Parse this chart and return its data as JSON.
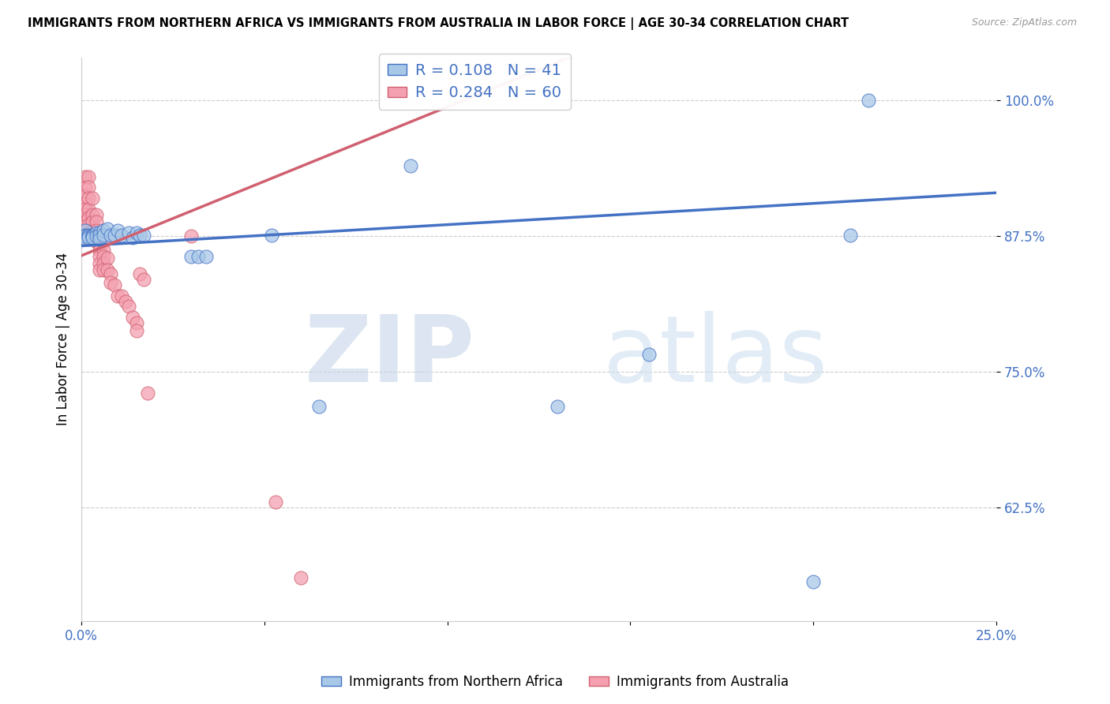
{
  "title": "IMMIGRANTS FROM NORTHERN AFRICA VS IMMIGRANTS FROM AUSTRALIA IN LABOR FORCE | AGE 30-34 CORRELATION CHART",
  "source": "Source: ZipAtlas.com",
  "ylabel_label": "In Labor Force | Age 30-34",
  "legend_label1": "Immigrants from Northern Africa",
  "legend_label2": "Immigrants from Australia",
  "R1": 0.108,
  "N1": 41,
  "R2": 0.284,
  "N2": 60,
  "color_blue": "#a8c8e8",
  "color_pink": "#f4a0b0",
  "color_blue_line": "#4472c4",
  "color_pink_line": "#d06070",
  "color_axis": "#4472c4",
  "xlim": [
    0.0,
    0.25
  ],
  "ylim": [
    0.52,
    1.04
  ],
  "blue_x": [
    0.0,
    0.0,
    0.001,
    0.001,
    0.001,
    0.001,
    0.002,
    0.002,
    0.002,
    0.003,
    0.003,
    0.003,
    0.003,
    0.004,
    0.004,
    0.005,
    0.005,
    0.005,
    0.006,
    0.006,
    0.007,
    0.008,
    0.009,
    0.01,
    0.011,
    0.013,
    0.014,
    0.015,
    0.016,
    0.017,
    0.03,
    0.032,
    0.034,
    0.052,
    0.065,
    0.09,
    0.13,
    0.155,
    0.2,
    0.21,
    0.215
  ],
  "blue_y": [
    0.876,
    0.875,
    0.88,
    0.876,
    0.875,
    0.873,
    0.876,
    0.875,
    0.874,
    0.876,
    0.875,
    0.875,
    0.874,
    0.878,
    0.875,
    0.878,
    0.876,
    0.872,
    0.88,
    0.876,
    0.882,
    0.876,
    0.876,
    0.88,
    0.876,
    0.878,
    0.874,
    0.878,
    0.876,
    0.876,
    0.856,
    0.856,
    0.856,
    0.876,
    0.718,
    0.94,
    0.718,
    0.766,
    0.556,
    0.876,
    1.0
  ],
  "pink_x": [
    0.0,
    0.0,
    0.0,
    0.001,
    0.001,
    0.001,
    0.001,
    0.001,
    0.001,
    0.001,
    0.001,
    0.002,
    0.002,
    0.002,
    0.002,
    0.002,
    0.002,
    0.002,
    0.002,
    0.003,
    0.003,
    0.003,
    0.003,
    0.003,
    0.003,
    0.004,
    0.004,
    0.004,
    0.004,
    0.004,
    0.004,
    0.005,
    0.005,
    0.005,
    0.005,
    0.005,
    0.005,
    0.006,
    0.006,
    0.006,
    0.006,
    0.006,
    0.007,
    0.007,
    0.008,
    0.008,
    0.009,
    0.01,
    0.011,
    0.012,
    0.013,
    0.014,
    0.015,
    0.015,
    0.016,
    0.017,
    0.018,
    0.03,
    0.053,
    0.06
  ],
  "pink_y": [
    0.876,
    0.875,
    0.873,
    0.93,
    0.92,
    0.912,
    0.905,
    0.9,
    0.895,
    0.888,
    0.875,
    0.93,
    0.92,
    0.91,
    0.9,
    0.892,
    0.885,
    0.878,
    0.875,
    0.91,
    0.895,
    0.888,
    0.88,
    0.875,
    0.873,
    0.895,
    0.888,
    0.88,
    0.875,
    0.872,
    0.87,
    0.875,
    0.868,
    0.862,
    0.856,
    0.85,
    0.844,
    0.87,
    0.862,
    0.856,
    0.85,
    0.844,
    0.855,
    0.844,
    0.84,
    0.832,
    0.83,
    0.82,
    0.82,
    0.815,
    0.81,
    0.8,
    0.795,
    0.788,
    0.84,
    0.835,
    0.73,
    0.875,
    0.63,
    0.56
  ]
}
